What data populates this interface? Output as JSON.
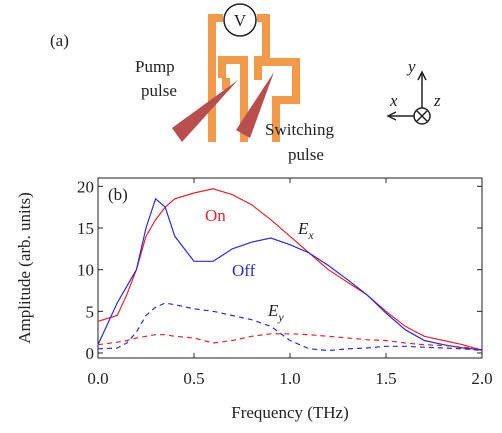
{
  "diagram": {
    "panel_label": "(a)",
    "voltmeter": "V",
    "pump_label": [
      "Pump",
      "pulse"
    ],
    "switching_label": [
      "Switching",
      "pulse"
    ],
    "axes": {
      "y": "y",
      "x": "x",
      "z": "z"
    }
  },
  "chart_data": {
    "type": "line",
    "panel_label": "(b)",
    "x_label": "Frequency (THz)",
    "y_label": "Amplitude (arb. units)",
    "x": [
      0,
      0.1,
      0.15,
      0.2,
      0.25,
      0.3,
      0.35,
      0.4,
      0.5,
      0.6,
      0.7,
      0.8,
      0.9,
      1.0,
      1.1,
      1.2,
      1.3,
      1.4,
      1.5,
      1.6,
      1.7,
      1.8,
      1.9,
      2.0
    ],
    "series": [
      {
        "name": "On",
        "color": "#e8242a",
        "dashed": false,
        "values": [
          3.8,
          4.5,
          7,
          10,
          14,
          16,
          17.5,
          18.5,
          19.2,
          19.7,
          19,
          17.8,
          16,
          14,
          12,
          10,
          8.5,
          7,
          5,
          3.2,
          2,
          1.5,
          1,
          0.3
        ]
      },
      {
        "name": "Off",
        "color": "#2a2ae0",
        "dashed": false,
        "values": [
          1,
          6,
          8,
          10,
          15,
          18.5,
          17.5,
          14,
          11,
          11,
          12.5,
          13.3,
          13.8,
          13,
          12,
          10.5,
          8.8,
          7,
          4.8,
          2.8,
          1.5,
          1,
          0.6,
          0.4
        ]
      },
      {
        "color": "#2a2ae0",
        "dashed": true,
        "values": [
          0.5,
          0.6,
          1.2,
          2.5,
          4.5,
          5.5,
          6,
          5.8,
          5.3,
          5,
          4.5,
          4,
          3.2,
          1.5,
          0.5,
          0.3,
          0.5,
          0.6,
          0.8,
          0.8,
          0.7,
          0.6,
          0.5,
          0.3
        ]
      },
      {
        "color": "#e8242a",
        "dashed": true,
        "values": [
          1,
          1.3,
          1.5,
          1.8,
          2,
          2.2,
          2.2,
          2,
          1.8,
          1.2,
          1.5,
          2,
          2.3,
          2.3,
          2.2,
          2,
          1.8,
          1.6,
          1.5,
          1.2,
          1,
          0.9,
          0.7,
          0.5
        ]
      }
    ],
    "annotations": [
      {
        "text": "E",
        "subscript": "x"
      },
      {
        "text": "E",
        "subscript": "y"
      }
    ],
    "xlim": [
      0,
      2.0
    ],
    "ylim": [
      -0.6,
      21
    ],
    "xticks": [
      {
        "value": 0,
        "label": "0.0"
      },
      0.5,
      {
        "value": 1,
        "label": "1.0"
      },
      1.5,
      {
        "value": 2,
        "label": "2.0"
      }
    ],
    "yticks": [
      0,
      5,
      10,
      15,
      20
    ]
  }
}
